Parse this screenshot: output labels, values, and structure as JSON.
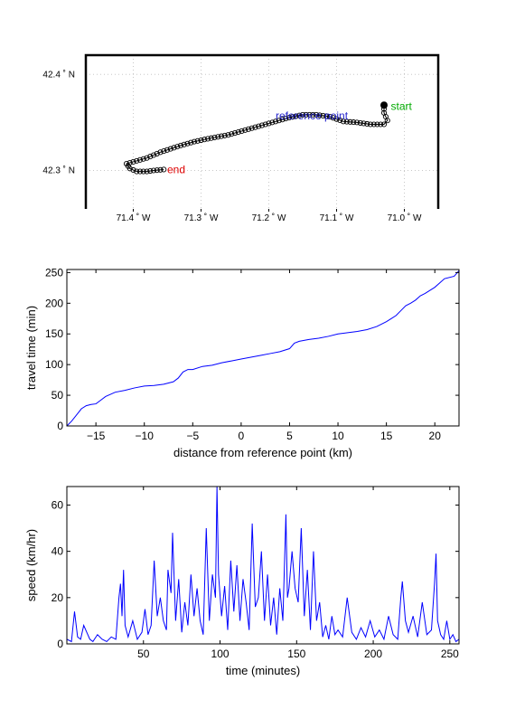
{
  "chart_data": [
    {
      "type": "map-track",
      "xlim": [
        -71.47,
        -70.95
      ],
      "ylim": [
        42.26,
        42.42
      ],
      "xticks": [
        {
          "value": -71.4,
          "label": "71.4 ˚ W"
        },
        {
          "value": -71.3,
          "label": "71.3 ˚ W"
        },
        {
          "value": -71.2,
          "label": "71.2 ˚ W"
        },
        {
          "value": -71.1,
          "label": "71.1 ˚ W"
        },
        {
          "value": -71.0,
          "label": "71.0 ˚ W"
        }
      ],
      "yticks": [
        {
          "value": 42.3,
          "label": "42.3 ˚ N"
        },
        {
          "value": 42.4,
          "label": "42.4 ˚ N"
        }
      ],
      "grid": true,
      "track_lon": [
        -71.03,
        -71.03,
        -71.025,
        -71.03,
        -71.035,
        -71.05,
        -71.07,
        -71.09,
        -71.11,
        -71.13,
        -71.15,
        -71.17,
        -71.2,
        -71.23,
        -71.26,
        -71.29,
        -71.31,
        -71.33,
        -71.36,
        -71.38,
        -71.4,
        -71.41,
        -71.405,
        -71.395,
        -71.38,
        -71.37,
        -71.355
      ],
      "track_lat": [
        42.368,
        42.36,
        42.352,
        42.348,
        42.348,
        42.348,
        42.35,
        42.351,
        42.356,
        42.358,
        42.358,
        42.355,
        42.349,
        42.343,
        42.337,
        42.333,
        42.33,
        42.326,
        42.319,
        42.313,
        42.309,
        42.307,
        42.302,
        42.299,
        42.299,
        42.3,
        42.301
      ],
      "annotations": [
        {
          "text": "start",
          "lon": -71.02,
          "lat": 42.363,
          "color": "#00aa00"
        },
        {
          "text": "reference point",
          "lon": -71.19,
          "lat": 42.353,
          "color": "#2222cc"
        },
        {
          "text": "end",
          "lon": -71.35,
          "lat": 42.297,
          "color": "#dd0000"
        }
      ]
    },
    {
      "type": "line",
      "xlabel": "distance from reference point (km)",
      "ylabel": "travel time (min)",
      "xlim": [
        -18,
        22.5
      ],
      "ylim": [
        0,
        255
      ],
      "xticks": [
        -15,
        -10,
        -5,
        0,
        5,
        10,
        15,
        20
      ],
      "yticks": [
        0,
        50,
        100,
        150,
        200,
        250
      ],
      "color": "#0000ff",
      "x": [
        -18,
        -17.5,
        -17,
        -16.5,
        -16,
        -15.5,
        -15,
        -14.5,
        -14,
        -13,
        -12,
        -11,
        -10,
        -9,
        -8,
        -7,
        -6.5,
        -6,
        -5.5,
        -5,
        -4,
        -3,
        -2,
        -1,
        0,
        1,
        2,
        3,
        4,
        5,
        5.5,
        6,
        7,
        8,
        9,
        10,
        11,
        12,
        13,
        14,
        15,
        15.5,
        16,
        16.5,
        17,
        17.5,
        18,
        18.5,
        19,
        20,
        21,
        22,
        22.5
      ],
      "y": [
        0,
        8,
        18,
        28,
        33,
        35,
        36,
        42,
        48,
        55,
        58,
        62,
        65,
        66,
        68,
        72,
        78,
        88,
        92,
        92,
        97,
        99,
        103,
        106,
        109,
        112,
        115,
        118,
        121,
        126,
        135,
        138,
        141,
        143,
        146,
        150,
        152,
        154,
        157,
        162,
        170,
        175,
        180,
        188,
        196,
        200,
        205,
        212,
        216,
        226,
        240,
        244,
        253
      ]
    },
    {
      "type": "line",
      "xlabel": "time (minutes)",
      "ylabel": "speed (km/hr)",
      "xlim": [
        0,
        256
      ],
      "ylim": [
        0,
        68
      ],
      "xticks": [
        50,
        100,
        150,
        200,
        250
      ],
      "yticks": [
        0,
        20,
        40,
        60
      ],
      "color": "#0000ff",
      "x": [
        0,
        3,
        5,
        7,
        9,
        11,
        13,
        15,
        17,
        20,
        23,
        26,
        29,
        32,
        34,
        35,
        36,
        37,
        38,
        40,
        43,
        46,
        49,
        51,
        53,
        55,
        57,
        59,
        61,
        63,
        65,
        66,
        68,
        69,
        71,
        73,
        75,
        77,
        79,
        81,
        83,
        85,
        87,
        89,
        91,
        93,
        95,
        97,
        98,
        99,
        101,
        103,
        105,
        107,
        109,
        111,
        113,
        115,
        117,
        119,
        121,
        123,
        125,
        127,
        129,
        131,
        133,
        135,
        137,
        139,
        141,
        143,
        144,
        145,
        147,
        149,
        151,
        153,
        155,
        157,
        159,
        161,
        163,
        165,
        167,
        169,
        171,
        173,
        175,
        177,
        180,
        183,
        186,
        189,
        192,
        195,
        198,
        201,
        204,
        207,
        210,
        213,
        216,
        218,
        219,
        221,
        223,
        226,
        229,
        232,
        235,
        238,
        240,
        241,
        242,
        244,
        246,
        248,
        250,
        252,
        254,
        256
      ],
      "y": [
        2,
        1,
        14,
        3,
        2,
        8,
        5,
        2,
        1,
        4,
        2,
        1,
        3,
        2,
        20,
        26,
        12,
        32,
        8,
        3,
        10,
        2,
        5,
        15,
        4,
        8,
        36,
        12,
        20,
        10,
        6,
        32,
        22,
        48,
        10,
        28,
        5,
        18,
        8,
        30,
        12,
        24,
        10,
        4,
        50,
        10,
        30,
        20,
        68,
        30,
        12,
        25,
        6,
        36,
        14,
        34,
        10,
        28,
        18,
        6,
        52,
        16,
        20,
        40,
        10,
        30,
        8,
        20,
        4,
        24,
        10,
        56,
        20,
        24,
        40,
        24,
        18,
        50,
        12,
        32,
        6,
        40,
        10,
        18,
        3,
        8,
        2,
        12,
        4,
        6,
        3,
        20,
        5,
        2,
        7,
        3,
        10,
        3,
        6,
        2,
        12,
        4,
        2,
        20,
        27,
        10,
        5,
        12,
        3,
        18,
        4,
        6,
        26,
        39,
        10,
        4,
        2,
        10,
        2,
        4,
        1,
        2
      ]
    }
  ]
}
